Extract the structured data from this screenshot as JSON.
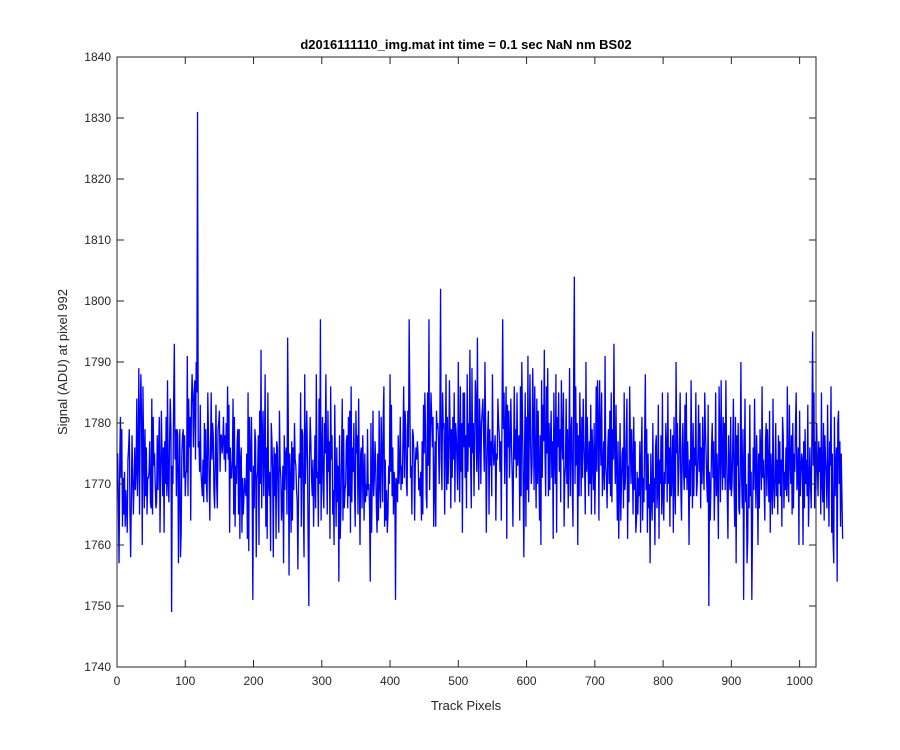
{
  "chart_data": {
    "type": "line",
    "title": "d2016111110_img.mat int time = 0.1 sec  NaN nm BS02",
    "xlabel": "Track Pixels",
    "ylabel": "Signal (ADU) at pixel 992",
    "xlim": [
      0,
      1024
    ],
    "ylim": [
      1740,
      1840
    ],
    "x_ticks": [
      0,
      100,
      200,
      300,
      400,
      500,
      600,
      700,
      800,
      900,
      1000
    ],
    "y_ticks": [
      1740,
      1750,
      1760,
      1770,
      1780,
      1790,
      1800,
      1810,
      1820,
      1830,
      1840
    ],
    "grid": false,
    "legend": "none",
    "series": [
      {
        "color": "#0000ff",
        "x_start": 1,
        "x_step": 1,
        "notable_points": [
          [
            80,
            1749
          ],
          [
            118,
            1831
          ],
          [
            281,
            1750
          ],
          [
            461,
            1802
          ],
          [
            638,
            1804
          ],
          [
            836,
            1750
          ],
          [
            968,
            1795
          ]
        ],
        "y": [
          1775,
          1767,
          1757,
          1773,
          1781,
          1771,
          1779,
          1763,
          1771,
          1765,
          1772,
          1763,
          1769,
          1766,
          1762,
          1774,
          1776,
          1779,
          1765,
          1758,
          1767,
          1778,
          1771,
          1765,
          1770,
          1776,
          1769,
          1772,
          1784,
          1768,
          1774,
          1789,
          1765,
          1781,
          1788,
          1780,
          1760,
          1786,
          1776,
          1766,
          1779,
          1768,
          1776,
          1765,
          1771,
          1771,
          1772,
          1777,
          1767,
          1766,
          1784,
          1765,
          1781,
          1773,
          1775,
          1770,
          1766,
          1767,
          1778,
          1769,
          1776,
          1781,
          1762,
          1771,
          1782,
          1775,
          1768,
          1776,
          1762,
          1777,
          1770,
          1781,
          1768,
          1787,
          1770,
          1767,
          1777,
          1784,
          1779,
          1749,
          1773,
          1770,
          1784,
          1793,
          1774,
          1779,
          1768,
          1779,
          1778,
          1757,
          1771,
          1779,
          1758,
          1762,
          1775,
          1778,
          1779,
          1771,
          1778,
          1768,
          1772,
          1772,
          1791,
          1768,
          1784,
          1776,
          1781,
          1764,
          1783,
          1788,
          1784,
          1776,
          1785,
          1787,
          1774,
          1790,
          1785,
          1831,
          1776,
          1777,
          1772,
          1783,
          1772,
          1770,
          1768,
          1774,
          1767,
          1780,
          1770,
          1779,
          1770,
          1767,
          1785,
          1778,
          1771,
          1764,
          1776,
          1785,
          1774,
          1780,
          1778,
          1769,
          1766,
          1774,
          1783,
          1770,
          1766,
          1779,
          1780,
          1782,
          1772,
          1778,
          1778,
          1775,
          1777,
          1781,
          1774,
          1778,
          1772,
          1780,
          1775,
          1786,
          1774,
          1783,
          1762,
          1776,
          1771,
          1771,
          1774,
          1784,
          1765,
          1781,
          1763,
          1773,
          1770,
          1777,
          1779,
          1765,
          1779,
          1761,
          1774,
          1776,
          1762,
          1771,
          1765,
          1768,
          1771,
          1769,
          1768,
          1775,
          1761,
          1785,
          1759,
          1781,
          1773,
          1772,
          1781,
          1769,
          1751,
          1773,
          1766,
          1779,
          1777,
          1758,
          1771,
          1772,
          1778,
          1760,
          1782,
          1770,
          1792,
          1766,
          1778,
          1782,
          1768,
          1775,
          1788,
          1763,
          1776,
          1761,
          1785,
          1770,
          1768,
          1772,
          1759,
          1780,
          1777,
          1772,
          1758,
          1776,
          1768,
          1775,
          1761,
          1777,
          1776,
          1768,
          1762,
          1782,
          1773,
          1771,
          1764,
          1767,
          1773,
          1757,
          1778,
          1769,
          1775,
          1776,
          1765,
          1794,
          1779,
          1755,
          1775,
          1771,
          1762,
          1777,
          1764,
          1776,
          1769,
          1780,
          1774,
          1773,
          1769,
          1767,
          1756,
          1770,
          1775,
          1771,
          1785,
          1763,
          1779,
          1778,
          1766,
          1758,
          1788,
          1770,
          1776,
          1782,
          1774,
          1761,
          1750,
          1774,
          1781,
          1777,
          1771,
          1768,
          1774,
          1763,
          1770,
          1778,
          1766,
          1788,
          1771,
          1772,
          1763,
          1784,
          1770,
          1797,
          1764,
          1774,
          1781,
          1769,
          1766,
          1780,
          1775,
          1788,
          1774,
          1765,
          1782,
          1772,
          1777,
          1761,
          1786,
          1774,
          1778,
          1765,
          1769,
          1760,
          1783,
          1772,
          1763,
          1776,
          1767,
          1773,
          1754,
          1778,
          1761,
          1766,
          1775,
          1784,
          1764,
          1779,
          1766,
          1769,
          1770,
          1777,
          1778,
          1766,
          1781,
          1768,
          1782,
          1762,
          1786,
          1767,
          1776,
          1772,
          1780,
          1769,
          1763,
          1782,
          1775,
          1778,
          1765,
          1784,
          1771,
          1760,
          1775,
          1776,
          1766,
          1778,
          1772,
          1764,
          1775,
          1767,
          1770,
          1768,
          1779,
          1769,
          1770,
          1766,
          1754,
          1780,
          1762,
          1771,
          1782,
          1768,
          1771,
          1777,
          1773,
          1766,
          1762,
          1775,
          1764,
          1782,
          1770,
          1766,
          1781,
          1775,
          1767,
          1781,
          1786,
          1763,
          1774,
          1764,
          1769,
          1762,
          1765,
          1773,
          1770,
          1788,
          1772,
          1783,
          1768,
          1776,
          1765,
          1772,
          1770,
          1751,
          1771,
          1770,
          1767,
          1778,
          1770,
          1773,
          1781,
          1769,
          1773,
          1770,
          1778,
          1786,
          1771,
          1782,
          1779,
          1770,
          1768,
          1782,
          1776,
          1797,
          1784,
          1771,
          1773,
          1765,
          1779,
          1778,
          1775,
          1764,
          1773,
          1776,
          1774,
          1777,
          1775,
          1769,
          1771,
          1768,
          1772,
          1764,
          1777,
          1765,
          1783,
          1775,
          1785,
          1779,
          1768,
          1766,
          1785,
          1773,
          1797,
          1769,
          1778,
          1785,
          1781,
          1776,
          1781,
          1763,
          1769,
          1777,
          1763,
          1782,
          1779,
          1780,
          1777,
          1770,
          1781,
          1802,
          1774,
          1769,
          1785,
          1779,
          1780,
          1765,
          1776,
          1788,
          1769,
          1781,
          1770,
          1775,
          1787,
          1779,
          1766,
          1779,
          1771,
          1781,
          1774,
          1785,
          1767,
          1780,
          1778,
          1774,
          1769,
          1790,
          1775,
          1767,
          1786,
          1772,
          1780,
          1762,
          1785,
          1776,
          1785,
          1771,
          1778,
          1766,
          1788,
          1772,
          1780,
          1776,
          1792,
          1774,
          1766,
          1789,
          1775,
          1780,
          1768,
          1777,
          1787,
          1783,
          1772,
          1794,
          1775,
          1769,
          1784,
          1779,
          1770,
          1780,
          1782,
          1784,
          1778,
          1772,
          1790,
          1780,
          1762,
          1773,
          1778,
          1782,
          1765,
          1779,
          1773,
          1777,
          1768,
          1788,
          1776,
          1773,
          1776,
          1778,
          1764,
          1775,
          1774,
          1784,
          1780,
          1778,
          1772,
          1777,
          1764,
          1781,
          1797,
          1779,
          1785,
          1770,
          1779,
          1786,
          1761,
          1783,
          1776,
          1782,
          1771,
          1777,
          1784,
          1776,
          1771,
          1763,
          1775,
          1786,
          1774,
          1779,
          1771,
          1785,
          1773,
          1777,
          1778,
          1764,
          1786,
          1768,
          1790,
          1781,
          1770,
          1758,
          1775,
          1785,
          1763,
          1781,
          1769,
          1791,
          1767,
          1778,
          1788,
          1776,
          1770,
          1773,
          1789,
          1781,
          1769,
          1786,
          1774,
          1766,
          1784,
          1770,
          1782,
          1773,
          1764,
          1778,
          1760,
          1787,
          1771,
          1783,
          1777,
          1792,
          1775,
          1768,
          1786,
          1775,
          1789,
          1768,
          1780,
          1769,
          1777,
          1782,
          1771,
          1777,
          1761,
          1785,
          1775,
          1770,
          1788,
          1762,
          1781,
          1776,
          1785,
          1772,
          1779,
          1767,
          1787,
          1777,
          1774,
          1785,
          1763,
          1771,
          1773,
          1784,
          1770,
          1779,
          1766,
          1776,
          1789,
          1768,
          1778,
          1781,
          1769,
          1763,
          1788,
          1804,
          1770,
          1786,
          1773,
          1780,
          1760,
          1778,
          1768,
          1785,
          1777,
          1768,
          1781,
          1771,
          1784,
          1777,
          1773,
          1765,
          1790,
          1772,
          1781,
          1774,
          1768,
          1777,
          1770,
          1783,
          1765,
          1779,
          1774,
          1769,
          1780,
          1765,
          1773,
          1786,
          1772,
          1787,
          1780,
          1764,
          1787,
          1778,
          1773,
          1785,
          1768,
          1772,
          1777,
          1769,
          1791,
          1773,
          1771,
          1766,
          1776,
          1779,
          1770,
          1782,
          1768,
          1785,
          1767,
          1779,
          1774,
          1793,
          1776,
          1770,
          1783,
          1772,
          1764,
          1777,
          1761,
          1769,
          1780,
          1764,
          1770,
          1775,
          1776,
          1766,
          1785,
          1769,
          1771,
          1778,
          1784,
          1761,
          1773,
          1767,
          1786,
          1778,
          1770,
          1779,
          1773,
          1765,
          1781,
          1769,
          1777,
          1762,
          1764,
          1772,
          1765,
          1771,
          1768,
          1777,
          1762,
          1774,
          1781,
          1764,
          1771,
          1767,
          1778,
          1788,
          1769,
          1779,
          1762,
          1775,
          1766,
          1770,
          1757,
          1775,
          1768,
          1764,
          1780,
          1767,
          1771,
          1760,
          1776,
          1778,
          1766,
          1769,
          1783,
          1761,
          1774,
          1770,
          1778,
          1765,
          1785,
          1768,
          1764,
          1772,
          1770,
          1780,
          1776,
          1767,
          1785,
          1770,
          1776,
          1763,
          1779,
          1768,
          1772,
          1778,
          1762,
          1781,
          1770,
          1765,
          1790,
          1775,
          1780,
          1768,
          1772,
          1777,
          1785,
          1769,
          1764,
          1776,
          1780,
          1772,
          1769,
          1783,
          1771,
          1785,
          1769,
          1777,
          1772,
          1760,
          1774,
          1768,
          1787,
          1775,
          1766,
          1780,
          1768,
          1776,
          1773,
          1785,
          1768,
          1770,
          1775,
          1783,
          1772,
          1780,
          1766,
          1776,
          1770,
          1781,
          1773,
          1769,
          1785,
          1779,
          1775,
          1770,
          1767,
          1783,
          1750,
          1772,
          1764,
          1769,
          1776,
          1780,
          1771,
          1777,
          1764,
          1771,
          1785,
          1768,
          1775,
          1770,
          1761,
          1786,
          1777,
          1767,
          1787,
          1775,
          1769,
          1781,
          1771,
          1780,
          1769,
          1787,
          1775,
          1768,
          1761,
          1778,
          1772,
          1769,
          1781,
          1768,
          1770,
          1776,
          1784,
          1769,
          1763,
          1781,
          1757,
          1778,
          1773,
          1780,
          1766,
          1765,
          1773,
          1790,
          1771,
          1766,
          1779,
          1751,
          1773,
          1784,
          1767,
          1770,
          1757,
          1761,
          1775,
          1766,
          1783,
          1768,
          1772,
          1751,
          1763,
          1776,
          1769,
          1784,
          1773,
          1766,
          1778,
          1772,
          1760,
          1775,
          1766,
          1779,
          1775,
          1769,
          1786,
          1771,
          1774,
          1770,
          1764,
          1777,
          1780,
          1768,
          1779,
          1773,
          1767,
          1782,
          1762,
          1775,
          1770,
          1765,
          1784,
          1770,
          1766,
          1771,
          1780,
          1768,
          1774,
          1765,
          1778,
          1770,
          1777,
          1768,
          1774,
          1763,
          1781,
          1778,
          1766,
          1772,
          1769,
          1776,
          1768,
          1786,
          1770,
          1767,
          1783,
          1774,
          1770,
          1778,
          1765,
          1780,
          1766,
          1775,
          1772,
          1780,
          1785,
          1769,
          1771,
          1776,
          1760,
          1782,
          1768,
          1772,
          1775,
          1774,
          1760,
          1777,
          1766,
          1779,
          1770,
          1774,
          1768,
          1783,
          1763,
          1769,
          1776,
          1770,
          1766,
          1778,
          1795,
          1773,
          1785,
          1766,
          1777,
          1769,
          1780,
          1773,
          1768,
          1777,
          1772,
          1776,
          1765,
          1785,
          1770,
          1767,
          1780,
          1764,
          1778,
          1774,
          1771,
          1766,
          1783,
          1771,
          1763,
          1777,
          1773,
          1786,
          1762,
          1775,
          1761,
          1757,
          1781,
          1768,
          1773,
          1776,
          1754,
          1780,
          1782,
          1770,
          1777,
          1763,
          1775,
          1768,
          1761
        ]
      }
    ]
  }
}
